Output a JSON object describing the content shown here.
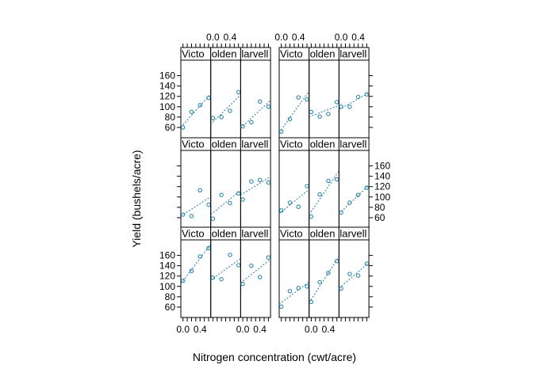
{
  "chart_data": {
    "type": "scatter",
    "xlabel": "Nitrogen concentration (cwt/acre)",
    "ylabel": "Yield (bushels/acre)",
    "x_tick_labels": [
      "0.0",
      "0.4"
    ],
    "y_tick_labels": [
      "60",
      "80",
      "100",
      "120",
      "140",
      "160"
    ],
    "x_range": [
      -0.05,
      0.65
    ],
    "y_range": [
      40,
      190
    ],
    "x_ticks_minor": [
      0.0,
      0.1,
      0.2,
      0.3,
      0.4,
      0.5,
      0.6
    ],
    "y_ticks": [
      60,
      80,
      100,
      120,
      140,
      160
    ],
    "nitro_levels": [
      0.0,
      0.2,
      0.4,
      0.6
    ],
    "panels": [
      {
        "block": "top-left",
        "variety": "Victory",
        "label": "Victo",
        "yield": [
          60,
          90,
          103,
          117
        ]
      },
      {
        "block": "top-left",
        "variety": "Golden Rain",
        "label": "olden",
        "yield": [
          78,
          80,
          92,
          128
        ]
      },
      {
        "block": "top-left",
        "variety": "Marvellous",
        "label": "larvell",
        "yield": [
          62,
          70,
          110,
          100
        ]
      },
      {
        "block": "top-right",
        "variety": "Victory",
        "label": "Victo",
        "yield": [
          52,
          76,
          118,
          114
        ]
      },
      {
        "block": "top-right",
        "variety": "Golden Rain",
        "label": "olden",
        "yield": [
          90,
          81,
          86,
          109
        ]
      },
      {
        "block": "top-right",
        "variety": "Marvellous",
        "label": "larvell",
        "yield": [
          100,
          100,
          119,
          124
        ]
      },
      {
        "block": "mid-left",
        "variety": "Victory",
        "label": "Victo",
        "yield": [
          66,
          63,
          113,
          85
        ]
      },
      {
        "block": "mid-left",
        "variety": "Golden Rain",
        "label": "olden",
        "yield": [
          58,
          104,
          88,
          107
        ]
      },
      {
        "block": "mid-left",
        "variety": "Marvellous",
        "label": "larvell",
        "yield": [
          95,
          130,
          133,
          128
        ]
      },
      {
        "block": "mid-right",
        "variety": "Victory",
        "label": "Victo",
        "yield": [
          74,
          89,
          81,
          121
        ]
      },
      {
        "block": "mid-right",
        "variety": "Golden Rain",
        "label": "olden",
        "yield": [
          62,
          105,
          131,
          134
        ]
      },
      {
        "block": "mid-right",
        "variety": "Marvellous",
        "label": "larvell",
        "yield": [
          70,
          89,
          104,
          118
        ]
      },
      {
        "block": "bot-left",
        "variety": "Victory",
        "label": "Victo",
        "yield": [
          111,
          130,
          158,
          174
        ]
      },
      {
        "block": "bot-left",
        "variety": "Golden Rain",
        "label": "olden",
        "yield": [
          117,
          114,
          161,
          141
        ]
      },
      {
        "block": "bot-left",
        "variety": "Marvellous",
        "label": "larvell",
        "yield": [
          105,
          140,
          118,
          156
        ]
      },
      {
        "block": "bot-right",
        "variety": "Victory",
        "label": "Victo",
        "yield": [
          61,
          91,
          97,
          100
        ]
      },
      {
        "block": "bot-right",
        "variety": "Golden Rain",
        "label": "olden",
        "yield": [
          70,
          108,
          126,
          149
        ]
      },
      {
        "block": "bot-right",
        "variety": "Marvellous",
        "label": "larvell",
        "yield": [
          96,
          124,
          121,
          144
        ]
      }
    ]
  }
}
